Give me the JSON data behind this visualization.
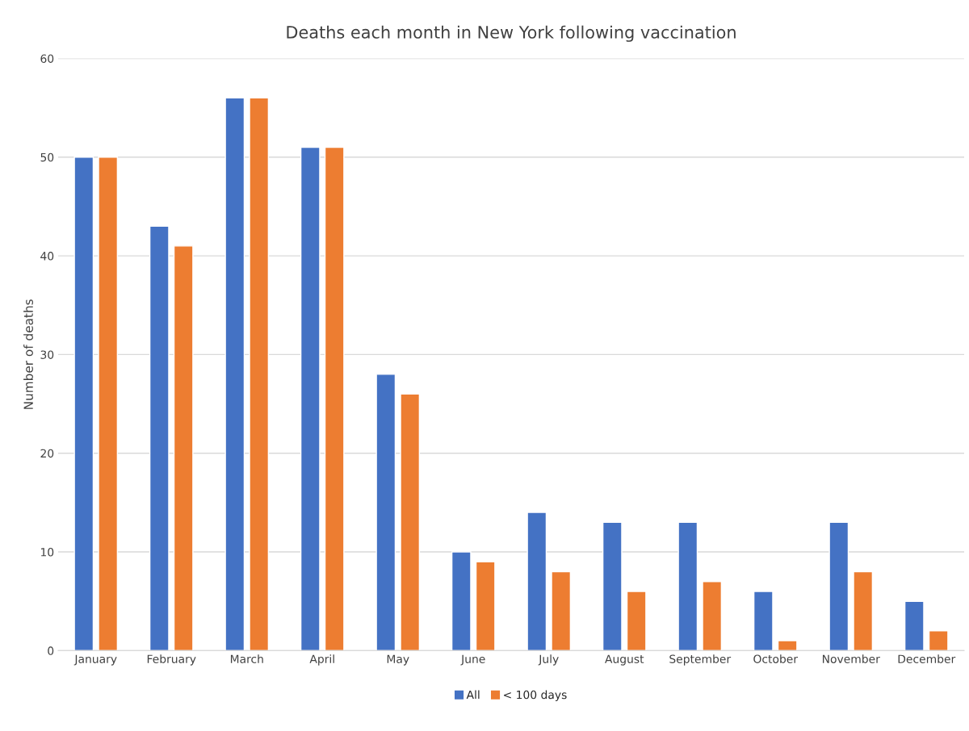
{
  "chart_data": {
    "type": "bar",
    "title": "Deaths each month in New York following vaccination",
    "ylabel": "Number of deaths",
    "categories": [
      "January",
      "February",
      "March",
      "April",
      "May",
      "June",
      "July",
      "August",
      "September",
      "October",
      "November",
      "December"
    ],
    "series": [
      {
        "name": "All",
        "color": "#4472c4",
        "values": [
          50,
          43,
          56,
          51,
          28,
          10,
          14,
          13,
          13,
          6,
          13,
          5
        ]
      },
      {
        "name": "< 100 days",
        "color": "#ed7d31",
        "values": [
          50,
          41,
          56,
          51,
          26,
          9,
          8,
          6,
          7,
          1,
          8,
          2
        ]
      }
    ],
    "ylim": [
      0,
      60
    ],
    "yticks": [
      0,
      10,
      20,
      30,
      40,
      50,
      60
    ],
    "grid": "y",
    "legend": "bottom"
  }
}
